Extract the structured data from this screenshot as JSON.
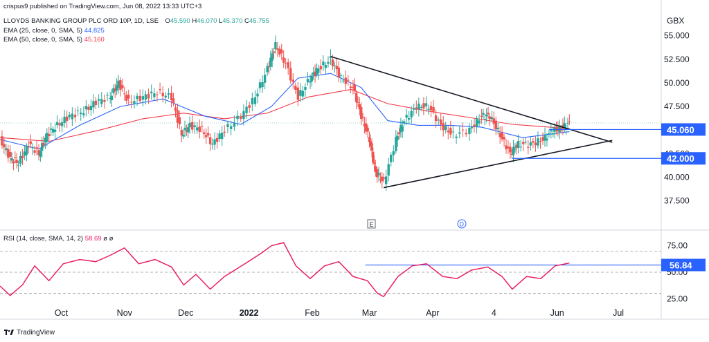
{
  "header": {
    "published": "crispus9 published on TradingView.com, Jun 08, 2022 13:33 UTC+3",
    "symbol_line": "LLOYDS BANKING GROUP PLC ORD 10P, 1D, LSE",
    "ohlc": {
      "o_label": "O",
      "o": "45.590",
      "h_label": "H",
      "h": "46.070",
      "l_label": "L",
      "l": "45.370",
      "c_label": "C",
      "c": "45.755"
    },
    "ema1": {
      "label": "EMA (25, close, 0, SMA, 5)",
      "value": "44.825",
      "color": "#2962ff"
    },
    "ema2": {
      "label": "EMA (50, close, 0, SMA, 5)",
      "value": "45.160",
      "color": "#f23645"
    }
  },
  "currency": "GBX",
  "price_axis": {
    "ticks": [
      "55.000",
      "52.500",
      "50.000",
      "47.500",
      "45.000",
      "42.500",
      "40.000",
      "37.500"
    ],
    "badges": [
      {
        "text": "45.060",
        "value": 45.06
      },
      {
        "text": "42.000",
        "value": 42.0
      }
    ]
  },
  "rsi": {
    "label": "RSI (14, close, SMA, 14, 2)",
    "value": "58.69",
    "extras": "ø ø",
    "ticks": [
      "75.00",
      "50.00",
      "25.00"
    ],
    "badge": {
      "text": "56.84",
      "value": 56.84
    },
    "color": "#e91e63"
  },
  "time_axis": {
    "labels": [
      {
        "text": "Oct",
        "bold": false
      },
      {
        "text": "Nov",
        "bold": false
      },
      {
        "text": "Dec",
        "bold": false
      },
      {
        "text": "2022",
        "bold": true
      },
      {
        "text": "Feb",
        "bold": false
      },
      {
        "text": "Mar",
        "bold": false
      },
      {
        "text": "Apr",
        "bold": false
      },
      {
        "text": "4",
        "bold": false
      },
      {
        "text": "Jun",
        "bold": false
      },
      {
        "text": "Jul",
        "bold": false
      }
    ]
  },
  "markers": [
    {
      "text": "E",
      "style": "square"
    },
    {
      "text": "D",
      "style": "circle"
    }
  ],
  "brand": "TradingView",
  "colors": {
    "up": "#26a69a",
    "down": "#ef5350",
    "ema25": "#2962ff",
    "ema50": "#f23645",
    "rsi": "#e91e63",
    "trendline": "#131722",
    "level": "#2962ff"
  },
  "chart_data": {
    "type": "candlestick",
    "title": "LLOYDS BANKING GROUP PLC ORD 10P, 1D, LSE",
    "currency": "GBX",
    "timeframe": "1D",
    "price_range": [
      35.5,
      56
    ],
    "rsi_range": [
      20,
      82
    ],
    "x_range": [
      "2021-09-01",
      "2022-07-22"
    ],
    "grid": false,
    "price_path": [
      [
        "2021-09-01",
        44.0
      ],
      [
        "2021-09-06",
        42.0
      ],
      [
        "2021-09-10",
        41.5
      ],
      [
        "2021-09-15",
        43.5
      ],
      [
        "2021-09-20",
        42.5
      ],
      [
        "2021-09-24",
        44.5
      ],
      [
        "2021-09-29",
        45.5
      ],
      [
        "2021-10-05",
        46.5
      ],
      [
        "2021-10-12",
        47.0
      ],
      [
        "2021-10-18",
        48.0
      ],
      [
        "2021-10-25",
        48.5
      ],
      [
        "2021-10-29",
        50.0
      ],
      [
        "2021-11-03",
        48.0
      ],
      [
        "2021-11-10",
        48.5
      ],
      [
        "2021-11-17",
        49.0
      ],
      [
        "2021-11-24",
        48.5
      ],
      [
        "2021-11-29",
        44.5
      ],
      [
        "2021-12-03",
        45.5
      ],
      [
        "2021-12-09",
        45.0
      ],
      [
        "2021-12-14",
        43.5
      ],
      [
        "2021-12-20",
        45.0
      ],
      [
        "2021-12-28",
        46.5
      ],
      [
        "2022-01-04",
        48.5
      ],
      [
        "2022-01-10",
        51.5
      ],
      [
        "2022-01-14",
        54.0
      ],
      [
        "2022-01-19",
        52.0
      ],
      [
        "2022-01-25",
        48.5
      ],
      [
        "2022-01-31",
        50.5
      ],
      [
        "2022-02-04",
        51.5
      ],
      [
        "2022-02-10",
        52.5
      ],
      [
        "2022-02-15",
        50.5
      ],
      [
        "2022-02-21",
        49.5
      ],
      [
        "2022-02-25",
        46.5
      ],
      [
        "2022-03-01",
        44.0
      ],
      [
        "2022-03-04",
        40.5
      ],
      [
        "2022-03-08",
        39.5
      ],
      [
        "2022-03-14",
        44.0
      ],
      [
        "2022-03-18",
        46.0
      ],
      [
        "2022-03-24",
        47.5
      ],
      [
        "2022-03-30",
        47.5
      ],
      [
        "2022-04-05",
        45.5
      ],
      [
        "2022-04-11",
        44.5
      ],
      [
        "2022-04-19",
        45.0
      ],
      [
        "2022-04-25",
        46.5
      ],
      [
        "2022-04-29",
        46.5
      ],
      [
        "2022-05-04",
        44.5
      ],
      [
        "2022-05-09",
        42.5
      ],
      [
        "2022-05-13",
        43.5
      ],
      [
        "2022-05-19",
        43.5
      ],
      [
        "2022-05-25",
        44.0
      ],
      [
        "2022-05-30",
        45.0
      ],
      [
        "2022-06-03",
        45.2
      ],
      [
        "2022-06-07",
        45.75
      ]
    ],
    "candles_last": {
      "date": "2022-06-07",
      "open": 45.59,
      "high": 46.07,
      "low": 45.37,
      "close": 45.755
    },
    "series": [
      {
        "name": "EMA (25, close, 0, SMA, 5)",
        "last": 44.825,
        "path": [
          [
            "2021-09-01",
            44.0
          ],
          [
            "2021-09-20",
            43.0
          ],
          [
            "2021-10-10",
            45.5
          ],
          [
            "2021-10-30",
            47.5
          ],
          [
            "2021-11-20",
            48.3
          ],
          [
            "2021-12-10",
            46.5
          ],
          [
            "2021-12-28",
            45.6
          ],
          [
            "2022-01-12",
            47.5
          ],
          [
            "2022-01-25",
            50.5
          ],
          [
            "2022-02-10",
            51.0
          ],
          [
            "2022-02-25",
            49.5
          ],
          [
            "2022-03-10",
            46.0
          ],
          [
            "2022-03-25",
            45.5
          ],
          [
            "2022-04-10",
            45.5
          ],
          [
            "2022-04-25",
            45.3
          ],
          [
            "2022-05-15",
            44.2
          ],
          [
            "2022-06-07",
            44.825
          ]
        ]
      },
      {
        "name": "EMA (50, close, 0, SMA, 5)",
        "last": 45.16,
        "path": [
          [
            "2021-09-01",
            44.2
          ],
          [
            "2021-09-25",
            43.8
          ],
          [
            "2021-10-20",
            45.0
          ],
          [
            "2021-11-10",
            46.2
          ],
          [
            "2021-11-30",
            46.8
          ],
          [
            "2021-12-20",
            46.2
          ],
          [
            "2022-01-10",
            46.8
          ],
          [
            "2022-01-30",
            48.5
          ],
          [
            "2022-02-20",
            49.3
          ],
          [
            "2022-03-10",
            47.8
          ],
          [
            "2022-03-30",
            47.0
          ],
          [
            "2022-04-20",
            46.3
          ],
          [
            "2022-05-10",
            45.6
          ],
          [
            "2022-06-07",
            45.16
          ]
        ]
      }
    ],
    "trendlines": [
      {
        "from": [
          "2022-02-10",
          52.8
        ],
        "to": [
          "2022-06-28",
          43.7
        ]
      },
      {
        "from": [
          "2022-03-08",
          38.9
        ],
        "to": [
          "2022-06-28",
          43.9
        ]
      }
    ],
    "horizontal_levels": [
      {
        "value": 45.06,
        "from": "2022-05-28"
      },
      {
        "value": 42.0,
        "from": "2022-05-10"
      }
    ],
    "rsi_series": {
      "name": "RSI (14, close, SMA, 14, 2)",
      "last": 58.69,
      "bands": [
        70,
        50,
        30
      ],
      "horizontal_level": 56.84,
      "path": [
        [
          "2021-09-01",
          37
        ],
        [
          "2021-09-06",
          28
        ],
        [
          "2021-09-12",
          38
        ],
        [
          "2021-09-18",
          56
        ],
        [
          "2021-09-25",
          42
        ],
        [
          "2021-10-02",
          58
        ],
        [
          "2021-10-10",
          62
        ],
        [
          "2021-10-18",
          60
        ],
        [
          "2021-10-25",
          66
        ],
        [
          "2021-11-01",
          73
        ],
        [
          "2021-11-08",
          58
        ],
        [
          "2021-11-16",
          62
        ],
        [
          "2021-11-24",
          55
        ],
        [
          "2021-11-30",
          38
        ],
        [
          "2021-12-06",
          48
        ],
        [
          "2021-12-13",
          34
        ],
        [
          "2021-12-20",
          46
        ],
        [
          "2021-12-30",
          58
        ],
        [
          "2022-01-07",
          68
        ],
        [
          "2022-01-12",
          75
        ],
        [
          "2022-01-18",
          78
        ],
        [
          "2022-01-24",
          56
        ],
        [
          "2022-01-31",
          44
        ],
        [
          "2022-02-07",
          56
        ],
        [
          "2022-02-14",
          60
        ],
        [
          "2022-02-21",
          46
        ],
        [
          "2022-02-28",
          42
        ],
        [
          "2022-03-05",
          30
        ],
        [
          "2022-03-08",
          27
        ],
        [
          "2022-03-15",
          46
        ],
        [
          "2022-03-22",
          56
        ],
        [
          "2022-03-29",
          58
        ],
        [
          "2022-04-06",
          46
        ],
        [
          "2022-04-13",
          44
        ],
        [
          "2022-04-20",
          52
        ],
        [
          "2022-04-28",
          55
        ],
        [
          "2022-05-05",
          46
        ],
        [
          "2022-05-10",
          34
        ],
        [
          "2022-05-17",
          46
        ],
        [
          "2022-05-24",
          44
        ],
        [
          "2022-05-31",
          56
        ],
        [
          "2022-06-07",
          58.69
        ]
      ]
    }
  }
}
